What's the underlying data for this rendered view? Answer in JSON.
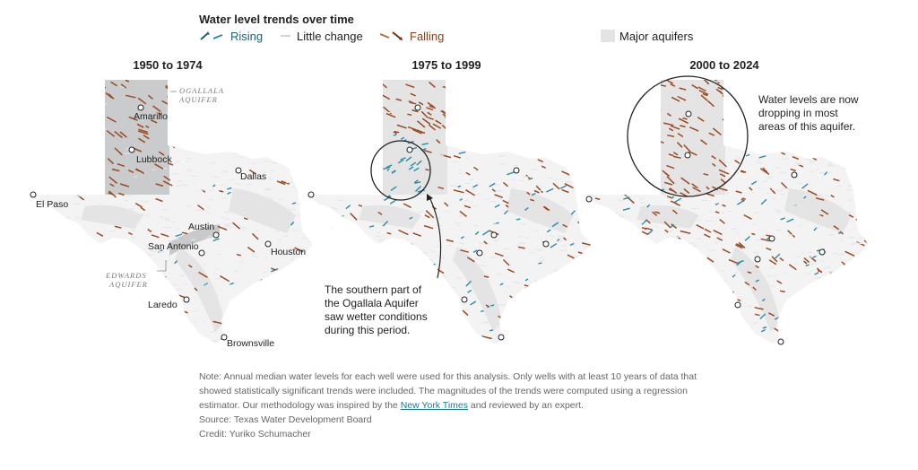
{
  "legend": {
    "title": "Water level trends over time",
    "rising": "Rising",
    "little_change": "Little change",
    "falling": "Falling",
    "aquifers": "Major aquifers"
  },
  "colors": {
    "rising": "#2a8aa5",
    "falling": "#9a4a22",
    "little": "#e3e6e8",
    "aquifer": "#e4e4e4",
    "state": "#f3f3f3"
  },
  "panels": [
    {
      "title": "1950 to 1974"
    },
    {
      "title": "1975 to 1999"
    },
    {
      "title": "2000 to 2024"
    }
  ],
  "cities": {
    "amarillo": "Amarillo",
    "lubbock": "Lubbock",
    "dallas": "Dallas",
    "el_paso": "El Paso",
    "austin": "Austin",
    "san_antonio": "San Antonio",
    "houston": "Houston",
    "laredo": "Laredo",
    "brownsville": "Brownsville"
  },
  "aquifer_labels": {
    "ogallala_1": "OGALLALA",
    "ogallala_2": "AQUIFER",
    "edwards_1": "EDWARDS",
    "edwards_2": "AQUIFER"
  },
  "annotations": {
    "mid_1": "The southern part of",
    "mid_2": "the Ogallala Aquifer",
    "mid_3": "saw wetter conditions",
    "mid_4": "during this period.",
    "right_1": "Water levels are now",
    "right_2": "dropping in most",
    "right_3": "areas of this aquifer."
  },
  "note": {
    "text_before": "Note: Annual median water levels for each well were used for this analysis. Only wells with at least 10 years of data that showed statistically significant trends were included. The magnitudes of the trends were computed using a regression estimator. Our methodology was inspired by the ",
    "link": "New York Times",
    "text_after": " and reviewed by an expert.",
    "source": "Source: Texas Water Development Board",
    "credit": "Credit: Yuriko Schumacher"
  }
}
